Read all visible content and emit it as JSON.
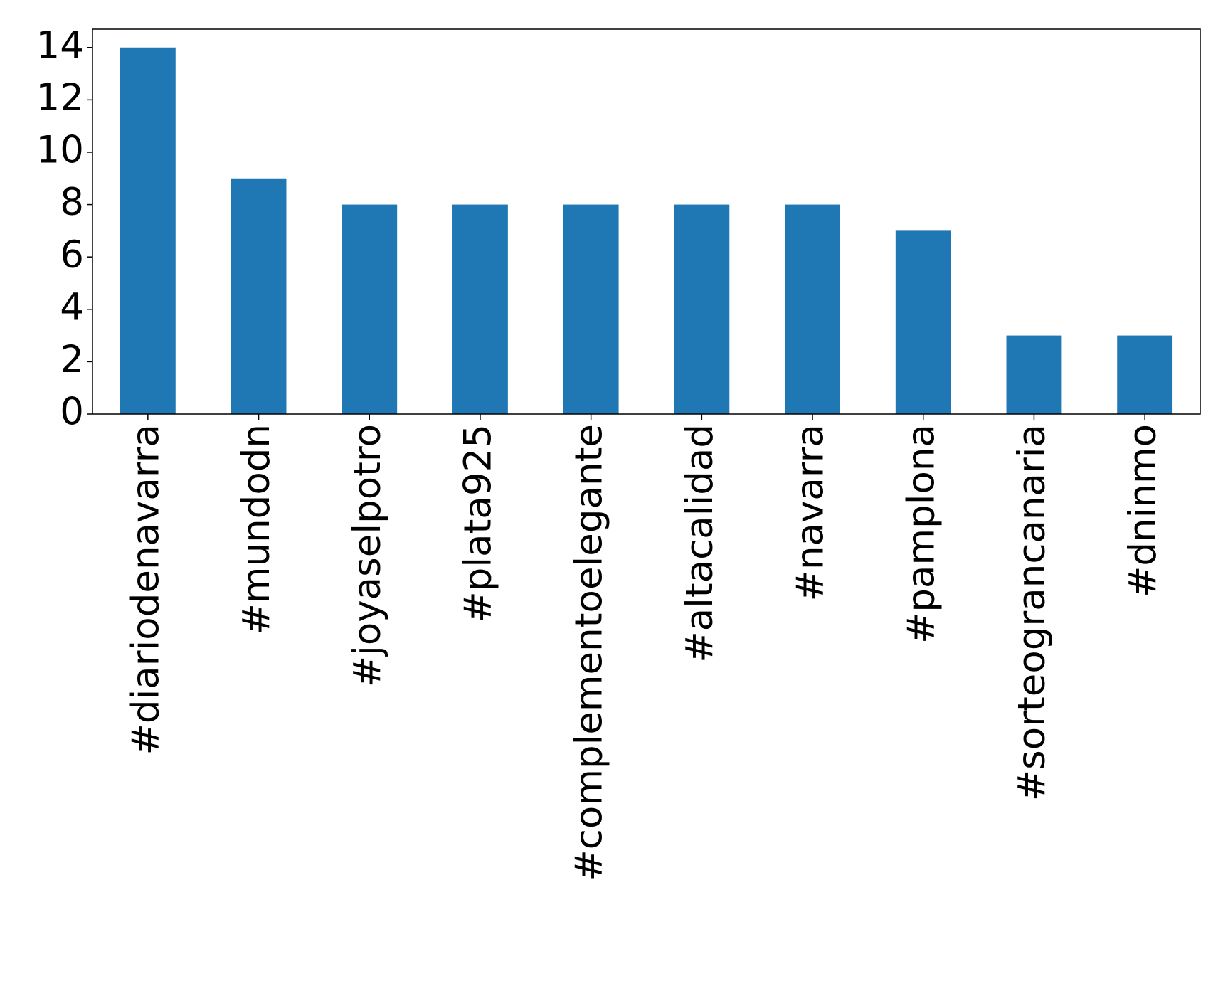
{
  "chart_data": {
    "type": "bar",
    "categories": [
      "#diariodenavarra",
      "#mundodn",
      "#joyaselpotro",
      "#plata925",
      "#complementoelegante",
      "#altacalidad",
      "#navarra",
      "#pamplona",
      "#sorteograncanaria",
      "#dninmo"
    ],
    "values": [
      14,
      9,
      8,
      8,
      8,
      8,
      8,
      7,
      3,
      3
    ],
    "color": "#1f77b4",
    "ylim": [
      0,
      14.7
    ],
    "yticks": [
      0,
      2,
      4,
      6,
      8,
      10,
      12,
      14
    ],
    "grid": false
  }
}
